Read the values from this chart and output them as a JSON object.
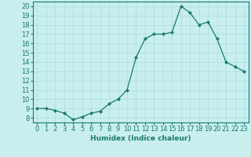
{
  "x": [
    0,
    1,
    2,
    3,
    4,
    5,
    6,
    7,
    8,
    9,
    10,
    11,
    12,
    13,
    14,
    15,
    16,
    17,
    18,
    19,
    20,
    21,
    22,
    23
  ],
  "y": [
    9,
    9,
    8.8,
    8.5,
    7.8,
    8.1,
    8.5,
    8.7,
    9.5,
    10,
    11,
    14.5,
    16.5,
    17,
    17,
    17.2,
    20,
    19.3,
    18,
    18.3,
    16.5,
    14,
    13.5,
    13
  ],
  "line_color": "#1a7a6e",
  "marker": "D",
  "marker_size": 2,
  "bg_color": "#c8eeee",
  "grid_color": "#aadddd",
  "xlabel": "Humidex (Indice chaleur)",
  "xlim": [
    -0.5,
    23.5
  ],
  "ylim": [
    7.5,
    20.5
  ],
  "yticks": [
    8,
    9,
    10,
    11,
    12,
    13,
    14,
    15,
    16,
    17,
    18,
    19,
    20
  ],
  "xticks": [
    0,
    1,
    2,
    3,
    4,
    5,
    6,
    7,
    8,
    9,
    10,
    11,
    12,
    13,
    14,
    15,
    16,
    17,
    18,
    19,
    20,
    21,
    22,
    23
  ],
  "label_fontsize": 6.5,
  "tick_fontsize": 6
}
